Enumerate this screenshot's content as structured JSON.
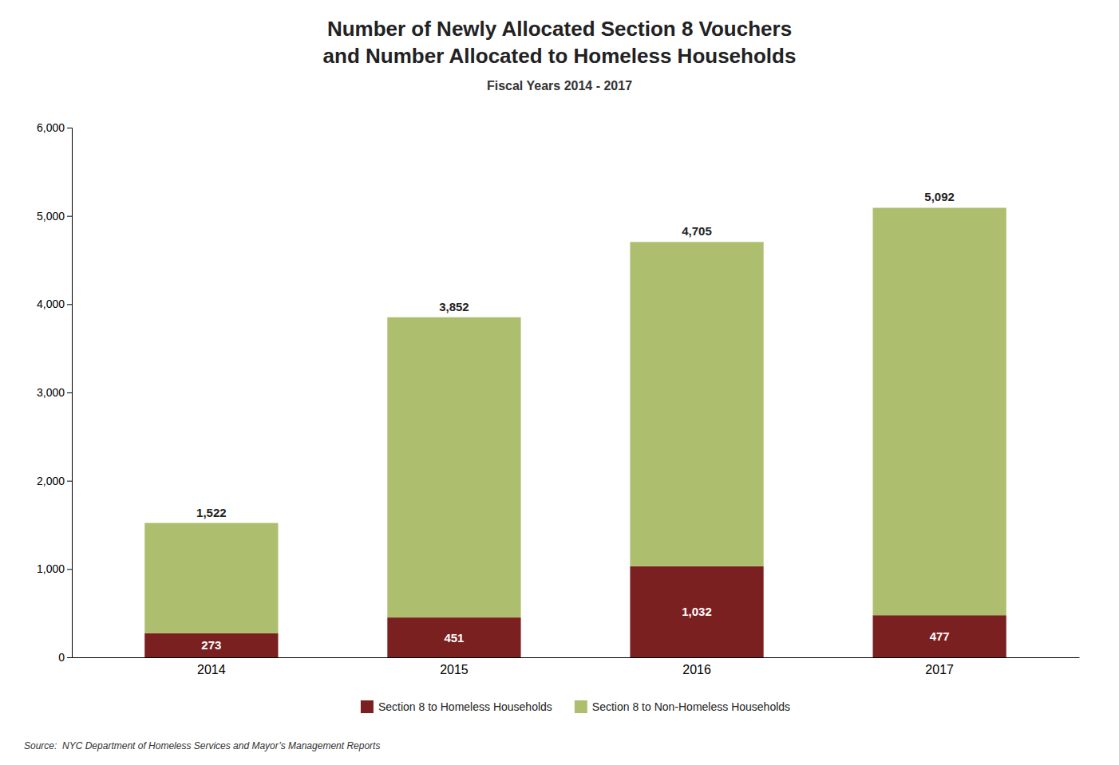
{
  "chart_data": {
    "type": "bar",
    "stacked": true,
    "title": "Number of Newly Allocated Section 8 Vouchers\nand Number Allocated to Homeless Households",
    "subtitle": "Fiscal Years 2014 - 2017",
    "source": "Source:  NYC Department of Homeless Services and Mayor’s Management Reports",
    "categories": [
      "2014",
      "2015",
      "2016",
      "2017"
    ],
    "series": [
      {
        "name": "Section 8 to Homeless Households",
        "color": "#7B2020",
        "values": [
          273,
          451,
          1032,
          477
        ],
        "value_labels": [
          "273",
          "451",
          "1,032",
          "477"
        ],
        "data_labels": true
      },
      {
        "name": "Section 8 to Non-Homeless Households",
        "color": "#ADBF6E",
        "values": [
          1249,
          3401,
          3673,
          4615
        ]
      }
    ],
    "totals": [
      1522,
      3852,
      4705,
      5092
    ],
    "total_labels": [
      "1,522",
      "3,852",
      "4,705",
      "5,092"
    ],
    "ylim": [
      0,
      6000
    ],
    "yticks": [
      0,
      {
        "value": 1000,
        "label": "1,000"
      },
      {
        "value": 2000,
        "label": "2,000"
      },
      {
        "value": 3000,
        "label": "3,000"
      },
      {
        "value": 4000,
        "label": "4,000"
      },
      {
        "value": 5000,
        "label": "5,000"
      },
      {
        "value": 6000,
        "label": "6,000"
      }
    ],
    "grid": false,
    "legend": "bottom"
  }
}
